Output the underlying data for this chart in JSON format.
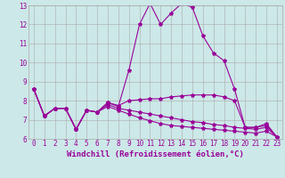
{
  "xlabel": "Windchill (Refroidissement éolien,°C)",
  "bg_color": "#cce8e8",
  "line_color": "#990099",
  "grid_color": "#aaaaaa",
  "xmin": 0,
  "xmax": 23,
  "ymin": 6,
  "ymax": 13,
  "series": [
    [
      8.6,
      7.2,
      7.6,
      7.6,
      6.5,
      7.5,
      7.4,
      7.9,
      7.7,
      9.6,
      12.0,
      13.1,
      12.0,
      12.6,
      13.1,
      12.9,
      11.4,
      10.5,
      10.1,
      8.6,
      6.6,
      6.6,
      6.8,
      6.1
    ],
    [
      8.6,
      7.2,
      7.6,
      7.6,
      6.5,
      7.5,
      7.4,
      7.9,
      7.75,
      8.0,
      8.05,
      8.1,
      8.1,
      8.2,
      8.25,
      8.3,
      8.3,
      8.3,
      8.2,
      8.0,
      6.6,
      6.6,
      6.7,
      6.1
    ],
    [
      8.6,
      7.2,
      7.6,
      7.6,
      6.5,
      7.5,
      7.4,
      7.8,
      7.6,
      7.5,
      7.4,
      7.3,
      7.2,
      7.1,
      7.0,
      6.9,
      6.85,
      6.75,
      6.7,
      6.6,
      6.55,
      6.5,
      6.6,
      6.1
    ],
    [
      8.6,
      7.2,
      7.6,
      7.6,
      6.5,
      7.5,
      7.4,
      7.7,
      7.5,
      7.3,
      7.1,
      6.95,
      6.8,
      6.7,
      6.65,
      6.6,
      6.55,
      6.5,
      6.45,
      6.4,
      6.35,
      6.3,
      6.4,
      6.1
    ]
  ],
  "yticks": [
    6,
    7,
    8,
    9,
    10,
    11,
    12,
    13
  ],
  "xtick_labels": [
    "0",
    "1",
    "2",
    "3",
    "4",
    "5",
    "6",
    "7",
    "8",
    "9",
    "10",
    "11",
    "12",
    "13",
    "14",
    "15",
    "16",
    "17",
    "18",
    "19",
    "20",
    "21",
    "22",
    "23"
  ],
  "xlabel_fontsize": 6.5,
  "tick_fontsize": 5.5
}
